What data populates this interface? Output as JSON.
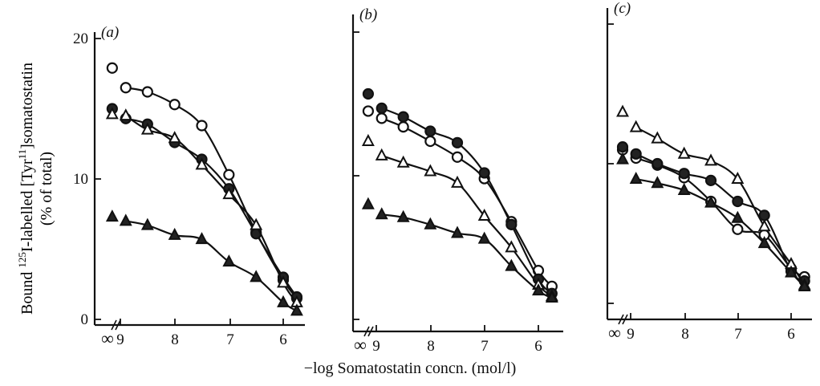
{
  "figure": {
    "y_title_line1": "Bound ",
    "y_title_sup": "125",
    "y_title_line1b": "I-labelled [Tyr",
    "y_title_sup2": "11",
    "y_title_line1c": "]somatostatin",
    "y_title_line2": "(% of total)",
    "x_title": "−log Somatostatin concn. (mol/l)"
  },
  "chart_data": [
    {
      "type": "line",
      "panel_label": "(a)",
      "x_ticks": [
        "∞",
        "9",
        "8",
        "7",
        "6"
      ],
      "y_ticks": [
        "0",
        "10",
        "20"
      ],
      "xlim": [
        9.2,
        5.7
      ],
      "ylim": [
        0,
        20
      ],
      "series": [
        {
          "marker": "open-circle",
          "x": [
            9.15,
            8.9,
            8.5,
            8.0,
            7.5,
            7.0,
            6.5,
            6.0,
            5.75
          ],
          "y": [
            17.9,
            16.5,
            16.2,
            15.3,
            13.8,
            10.3,
            6.2,
            2.8,
            1.5
          ]
        },
        {
          "marker": "filled-circle",
          "x": [
            9.15,
            8.9,
            8.5,
            8.0,
            7.5,
            7.0,
            6.5,
            6.0,
            5.75
          ],
          "y": [
            15.0,
            14.3,
            13.9,
            12.6,
            11.4,
            9.3,
            6.1,
            3.0,
            1.6
          ]
        },
        {
          "marker": "open-triangle",
          "x": [
            9.15,
            8.9,
            8.5,
            8.0,
            7.5,
            7.0,
            6.5,
            6.0,
            5.75
          ],
          "y": [
            14.6,
            14.5,
            13.5,
            12.9,
            11.0,
            8.9,
            6.7,
            2.6,
            1.2
          ]
        },
        {
          "marker": "filled-triangle",
          "x": [
            9.15,
            8.9,
            8.5,
            8.0,
            7.5,
            7.0,
            6.5,
            6.0,
            5.75
          ],
          "y": [
            7.3,
            7.0,
            6.7,
            6.0,
            5.7,
            4.1,
            3.0,
            1.2,
            0.6
          ]
        }
      ]
    },
    {
      "type": "line",
      "panel_label": "(b)",
      "x_ticks": [
        "∞",
        "9",
        "8",
        "7",
        "6"
      ],
      "y_ticks": [],
      "xlim": [
        9.2,
        5.7
      ],
      "ylim": [
        0,
        20
      ],
      "series": [
        {
          "marker": "open-circle",
          "x": [
            9.15,
            8.9,
            8.5,
            8.0,
            7.5,
            7.0,
            6.5,
            6.0,
            5.75
          ],
          "y": [
            14.5,
            14.0,
            13.4,
            12.4,
            11.3,
            9.8,
            6.8,
            3.4,
            2.3
          ]
        },
        {
          "marker": "filled-circle",
          "x": [
            9.15,
            8.9,
            8.5,
            8.0,
            7.5,
            7.0,
            6.5,
            6.0,
            5.75
          ],
          "y": [
            15.7,
            14.7,
            14.1,
            13.1,
            12.3,
            10.2,
            6.6,
            2.8,
            1.8
          ]
        },
        {
          "marker": "open-triangle",
          "x": [
            9.15,
            8.9,
            8.5,
            8.0,
            7.5,
            7.0,
            6.5,
            6.0,
            5.75
          ],
          "y": [
            12.4,
            11.4,
            10.9,
            10.3,
            9.5,
            7.2,
            5.0,
            2.4,
            1.6
          ]
        },
        {
          "marker": "filled-triangle",
          "x": [
            9.15,
            8.9,
            8.5,
            8.0,
            7.5,
            7.0,
            6.5,
            6.0,
            5.75
          ],
          "y": [
            8.0,
            7.3,
            7.1,
            6.6,
            6.0,
            5.6,
            3.7,
            2.0,
            1.5
          ]
        }
      ]
    },
    {
      "type": "line",
      "panel_label": "(c)",
      "x_ticks": [
        "∞",
        "9",
        "8",
        "7",
        "6"
      ],
      "y_ticks": [],
      "xlim": [
        9.2,
        5.7
      ],
      "ylim": [
        0,
        20
      ],
      "series": [
        {
          "marker": "open-circle",
          "x": [
            9.15,
            8.9,
            8.5,
            8.0,
            7.5,
            7.0,
            6.5,
            6.0,
            5.75
          ],
          "y": [
            11.0,
            10.4,
            9.9,
            9.0,
            7.3,
            5.3,
            4.9,
            2.5,
            1.9
          ]
        },
        {
          "marker": "filled-circle",
          "x": [
            9.15,
            8.9,
            8.5,
            8.0,
            7.5,
            7.0,
            6.5,
            6.0,
            5.75
          ],
          "y": [
            11.2,
            10.7,
            10.0,
            9.3,
            8.8,
            7.3,
            6.3,
            2.3,
            1.6
          ]
        },
        {
          "marker": "open-triangle",
          "x": [
            9.15,
            8.9,
            8.5,
            8.0,
            7.5,
            7.0,
            6.5,
            6.0,
            5.75
          ],
          "y": [
            13.7,
            12.6,
            11.8,
            10.7,
            10.2,
            8.9,
            5.5,
            2.8,
            1.3
          ]
        },
        {
          "marker": "filled-triangle",
          "x": [
            9.15,
            8.9,
            8.5,
            8.0,
            7.5,
            7.0,
            6.5,
            6.0,
            5.75
          ],
          "y": [
            10.3,
            8.9,
            8.6,
            8.1,
            7.2,
            6.1,
            4.3,
            2.2,
            1.2
          ]
        }
      ]
    }
  ]
}
